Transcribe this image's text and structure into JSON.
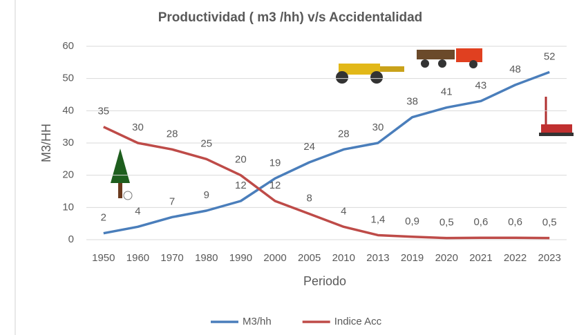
{
  "chart_data": {
    "type": "line",
    "title": "Productividad ( m3 /hh) v/s Accidentalidad",
    "x_label": "Periodo",
    "y_label": "M3/HH",
    "categories": [
      "1950",
      "1960",
      "1970",
      "1980",
      "1990",
      "2000",
      "2005",
      "2010",
      "2013",
      "2019",
      "2020",
      "2021",
      "2022",
      "2023"
    ],
    "series": [
      {
        "name": "M3/hh",
        "color": "#4a7ebb",
        "values": [
          2,
          4,
          7,
          9,
          12,
          19,
          24,
          28,
          30,
          38,
          41,
          43,
          48,
          52
        ]
      },
      {
        "name": "Indice Acc",
        "color": "#be4b48",
        "values": [
          35,
          30,
          28,
          25,
          20,
          12,
          8,
          4,
          1.4,
          0.9,
          0.5,
          0.6,
          0.6,
          0.5
        ],
        "value_labels": [
          "35",
          "30",
          "28",
          "25",
          "20",
          "12",
          "8",
          "4",
          "1,4",
          "0,9",
          "0,5",
          "0,6",
          "0,6",
          "0,5"
        ]
      }
    ],
    "ylim": [
      0,
      60
    ],
    "yticks": [
      0,
      10,
      20,
      30,
      40,
      50,
      60
    ],
    "grid": true,
    "legend": "bottom"
  }
}
